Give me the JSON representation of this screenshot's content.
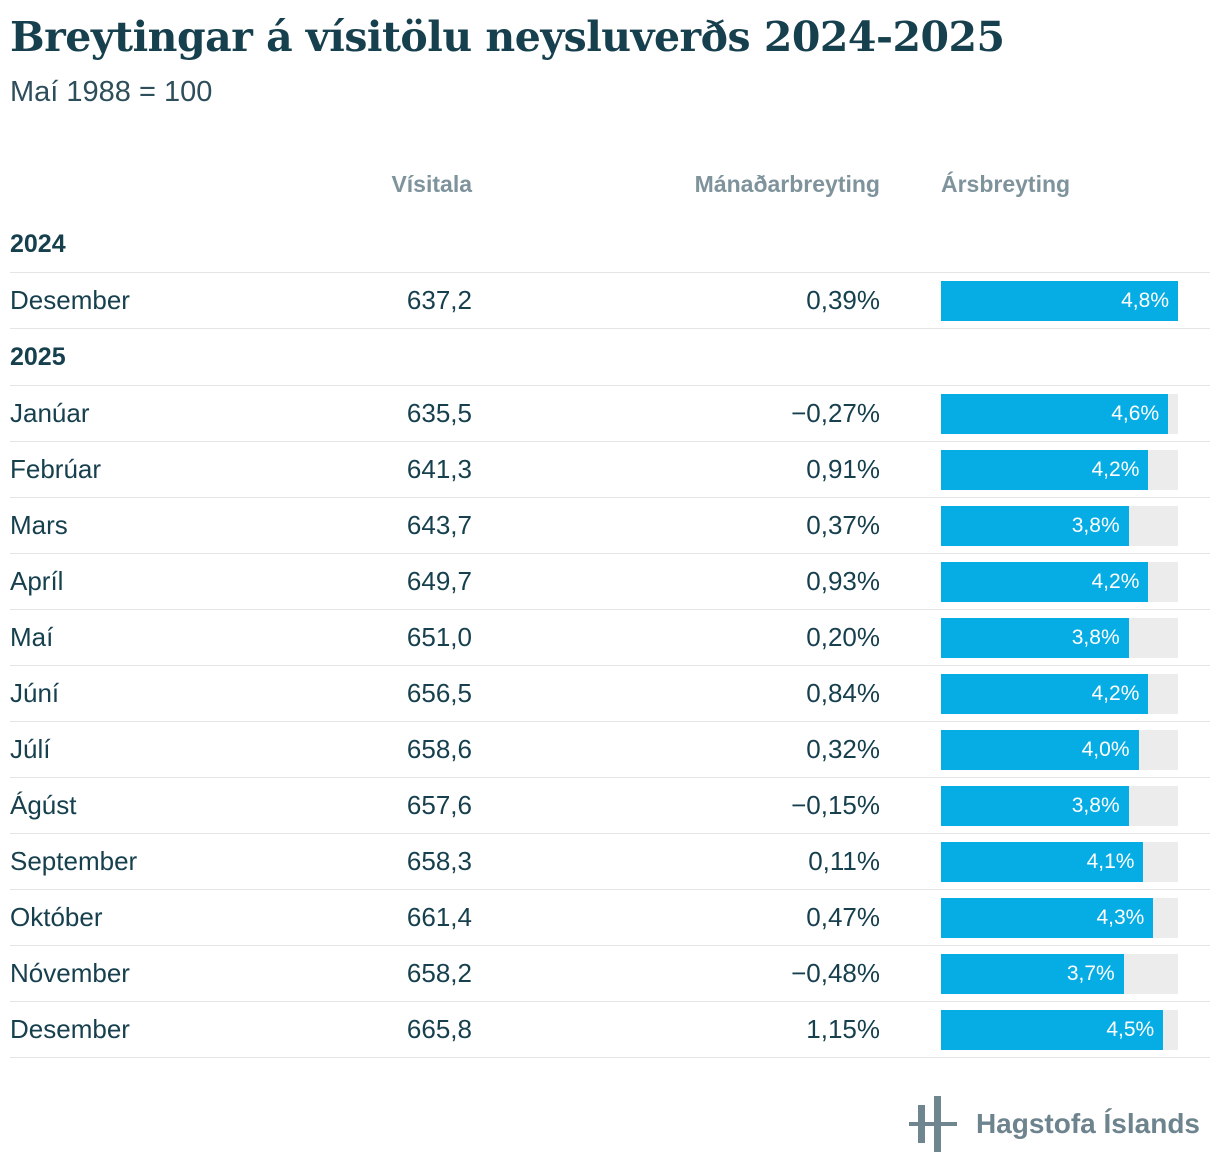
{
  "header": {
    "title": "Breytingar á vísitölu neysluverðs 2024-2025",
    "subtitle": "Maí 1988 = 100"
  },
  "colors": {
    "accent": "#06ade5",
    "bar_track": "#ececec",
    "text_dark": "#17404e",
    "heading_muted": "#7e939c",
    "row_border": "#e5e5e5",
    "logo_gray": "#6f858f"
  },
  "footer": {
    "org": "Hagstofa Íslands"
  },
  "chart_data": {
    "type": "table",
    "title": "Breytingar á vísitölu neysluverðs 2024-2025",
    "subtitle": "Maí 1988 = 100",
    "columns": [
      "Vísitala",
      "Mánaðarbreyting",
      "Ársbreyting"
    ],
    "bar_column": "Ársbreyting",
    "bar_scale_max": 4.8,
    "bar_unit": "%",
    "legend_position": "none",
    "sections": [
      {
        "year": "2024",
        "rows": [
          {
            "month": "Desember",
            "visitala": "637,2",
            "manadarbreyting": "0,39%",
            "arsbreyting_value": 4.8,
            "arsbreyting_label": "4,8%"
          }
        ]
      },
      {
        "year": "2025",
        "rows": [
          {
            "month": "Janúar",
            "visitala": "635,5",
            "manadarbreyting": "−0,27%",
            "arsbreyting_value": 4.6,
            "arsbreyting_label": "4,6%"
          },
          {
            "month": "Febrúar",
            "visitala": "641,3",
            "manadarbreyting": "0,91%",
            "arsbreyting_value": 4.2,
            "arsbreyting_label": "4,2%"
          },
          {
            "month": "Mars",
            "visitala": "643,7",
            "manadarbreyting": "0,37%",
            "arsbreyting_value": 3.8,
            "arsbreyting_label": "3,8%"
          },
          {
            "month": "Apríl",
            "visitala": "649,7",
            "manadarbreyting": "0,93%",
            "arsbreyting_value": 4.2,
            "arsbreyting_label": "4,2%"
          },
          {
            "month": "Maí",
            "visitala": "651,0",
            "manadarbreyting": "0,20%",
            "arsbreyting_value": 3.8,
            "arsbreyting_label": "3,8%"
          },
          {
            "month": "Júní",
            "visitala": "656,5",
            "manadarbreyting": "0,84%",
            "arsbreyting_value": 4.2,
            "arsbreyting_label": "4,2%"
          },
          {
            "month": "Júlí",
            "visitala": "658,6",
            "manadarbreyting": "0,32%",
            "arsbreyting_value": 4.0,
            "arsbreyting_label": "4,0%"
          },
          {
            "month": "Ágúst",
            "visitala": "657,6",
            "manadarbreyting": "−0,15%",
            "arsbreyting_value": 3.8,
            "arsbreyting_label": "3,8%"
          },
          {
            "month": "September",
            "visitala": "658,3",
            "manadarbreyting": "0,11%",
            "arsbreyting_value": 4.1,
            "arsbreyting_label": "4,1%"
          },
          {
            "month": "Október",
            "visitala": "661,4",
            "manadarbreyting": "0,47%",
            "arsbreyting_value": 4.3,
            "arsbreyting_label": "4,3%"
          },
          {
            "month": "Nóvember",
            "visitala": "658,2",
            "manadarbreyting": "−0,48%",
            "arsbreyting_value": 3.7,
            "arsbreyting_label": "3,7%"
          },
          {
            "month": "Desember",
            "visitala": "665,8",
            "manadarbreyting": "1,15%",
            "arsbreyting_value": 4.5,
            "arsbreyting_label": "4,5%"
          }
        ]
      }
    ]
  }
}
